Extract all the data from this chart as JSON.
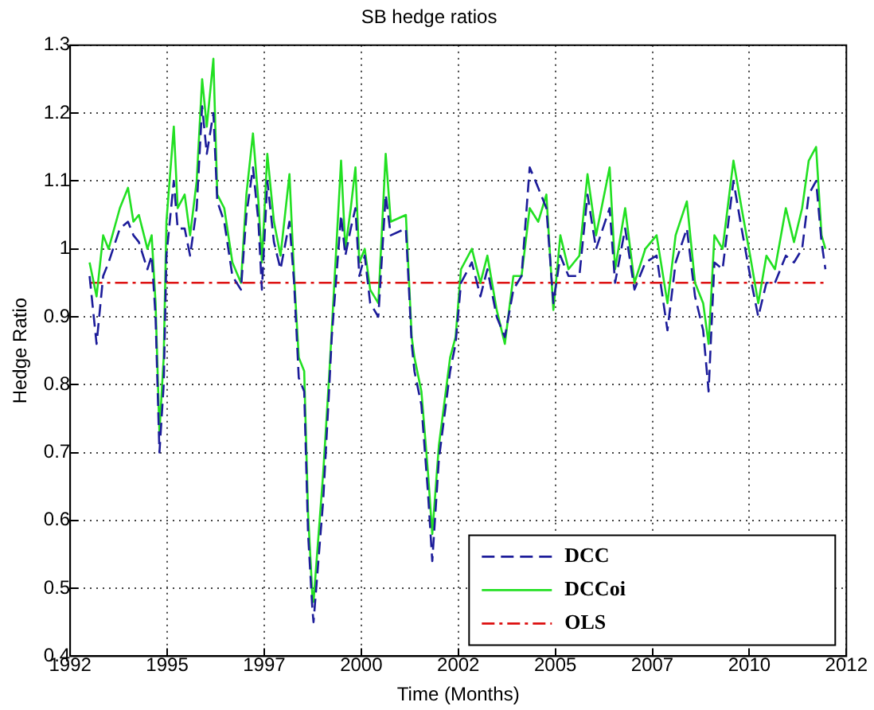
{
  "chart_data": {
    "type": "line",
    "title": "SB hedge ratios",
    "xlabel": "Time (Months)",
    "ylabel": "Hedge Ratio",
    "xlim": [
      1992,
      2012
    ],
    "xticks": [
      1992,
      {
        "value": 1994.5,
        "label": "1995"
      },
      1997,
      {
        "value": 1999.5,
        "label": "2000"
      },
      2002,
      {
        "value": 2004.5,
        "label": "2005"
      },
      2007,
      {
        "value": 2009.5,
        "label": "2010"
      },
      2012
    ],
    "ylim": [
      0.4,
      1.3
    ],
    "yticks": [
      0.4,
      0.5,
      0.6,
      0.7,
      0.8,
      0.9,
      1,
      1.1,
      1.2,
      1.3
    ],
    "grid": true,
    "legend": "bottom right",
    "marker": "none",
    "series": [
      {
        "name": "DCC",
        "color": "#1c1c9a",
        "line_style": "dashed",
        "x": [
          1992.5,
          1992.68,
          1992.85,
          1992.99,
          1993.28,
          1993.49,
          1993.63,
          1993.77,
          1993.99,
          1994.1,
          1994.2,
          1994.3,
          1994.41,
          1994.48,
          1994.67,
          1994.77,
          1994.95,
          1995.09,
          1995.26,
          1995.4,
          1995.52,
          1995.69,
          1995.79,
          1995.97,
          1996.18,
          1996.4,
          1996.54,
          1996.71,
          1996.85,
          1996.94,
          1997.08,
          1997.25,
          1997.42,
          1997.65,
          1997.77,
          1997.89,
          1998.03,
          1998.13,
          1998.24,
          1998.27,
          1998.52,
          1998.67,
          1998.74,
          1998.98,
          1999.09,
          1999.23,
          1999.35,
          1999.45,
          1999.59,
          1999.73,
          1999.94,
          2000.13,
          2000.26,
          2000.65,
          2000.8,
          2000.87,
          2001.05,
          2001.22,
          2001.33,
          2001.5,
          2001.79,
          2001.93,
          2002.07,
          2002.35,
          2002.57,
          2002.75,
          2002.99,
          2003.2,
          2003.42,
          2003.63,
          2003.84,
          2004.06,
          2004.27,
          2004.45,
          2004.63,
          2004.84,
          2005.12,
          2005.33,
          2005.55,
          2005.9,
          2006.04,
          2006.3,
          2006.54,
          2006.82,
          2007.11,
          2007.39,
          2007.6,
          2007.89,
          2008.1,
          2008.31,
          2008.45,
          2008.6,
          2008.81,
          2009.09,
          2009.3,
          2009.52,
          2009.73,
          2009.94,
          2010.16,
          2010.44,
          2010.65,
          2010.86,
          2011.03,
          2011.22,
          2011.36,
          2011.46
        ],
        "values": [
          0.96,
          0.86,
          0.96,
          0.98,
          1.03,
          1.04,
          1.02,
          1.01,
          0.97,
          0.99,
          0.9,
          0.7,
          0.8,
          0.99,
          1.1,
          1.03,
          1.03,
          0.99,
          1.06,
          1.21,
          1.14,
          1.2,
          1.07,
          1.04,
          0.96,
          0.94,
          1.05,
          1.12,
          1.04,
          0.94,
          1.1,
          1.01,
          0.97,
          1.04,
          0.95,
          0.81,
          0.79,
          0.58,
          0.47,
          0.45,
          0.63,
          0.79,
          0.87,
          1.05,
          0.99,
          1.03,
          1.06,
          0.96,
          0.99,
          0.92,
          0.9,
          1.08,
          1.02,
          1.03,
          0.86,
          0.82,
          0.77,
          0.64,
          0.54,
          0.69,
          0.82,
          0.86,
          0.95,
          0.98,
          0.93,
          0.97,
          0.9,
          0.87,
          0.94,
          0.96,
          1.12,
          1.09,
          1.06,
          0.92,
          0.99,
          0.96,
          0.96,
          1.08,
          1.0,
          1.06,
          0.95,
          1.03,
          0.94,
          0.98,
          0.99,
          0.88,
          0.98,
          1.03,
          0.93,
          0.88,
          0.79,
          0.98,
          0.97,
          1.1,
          1.03,
          0.96,
          0.9,
          0.95,
          0.95,
          0.99,
          0.98,
          1.0,
          1.08,
          1.1,
          1.01,
          0.97
        ]
      },
      {
        "name": "DCCoi",
        "color": "#22e022",
        "line_style": "solid",
        "x": [
          1992.5,
          1992.68,
          1992.85,
          1992.99,
          1993.28,
          1993.49,
          1993.63,
          1993.77,
          1993.99,
          1994.1,
          1994.2,
          1994.3,
          1994.41,
          1994.48,
          1994.67,
          1994.77,
          1994.95,
          1995.09,
          1995.26,
          1995.4,
          1995.52,
          1995.69,
          1995.79,
          1995.97,
          1996.18,
          1996.4,
          1996.54,
          1996.71,
          1996.85,
          1996.94,
          1997.08,
          1997.25,
          1997.42,
          1997.65,
          1997.77,
          1997.89,
          1998.03,
          1998.13,
          1998.24,
          1998.27,
          1998.52,
          1998.67,
          1998.74,
          1998.98,
          1999.09,
          1999.23,
          1999.35,
          1999.45,
          1999.59,
          1999.73,
          1999.94,
          2000.13,
          2000.26,
          2000.65,
          2000.8,
          2000.87,
          2001.05,
          2001.22,
          2001.33,
          2001.5,
          2001.79,
          2001.93,
          2002.07,
          2002.35,
          2002.57,
          2002.75,
          2002.99,
          2003.2,
          2003.42,
          2003.63,
          2003.84,
          2004.06,
          2004.27,
          2004.45,
          2004.63,
          2004.84,
          2005.12,
          2005.33,
          2005.55,
          2005.9,
          2006.04,
          2006.3,
          2006.54,
          2006.82,
          2007.11,
          2007.39,
          2007.6,
          2007.89,
          2008.1,
          2008.31,
          2008.45,
          2008.6,
          2008.81,
          2009.09,
          2009.3,
          2009.52,
          2009.73,
          2009.94,
          2010.16,
          2010.44,
          2010.65,
          2010.86,
          2011.03,
          2011.22,
          2011.36,
          2011.46
        ],
        "values": [
          0.98,
          0.93,
          1.02,
          1.0,
          1.06,
          1.09,
          1.04,
          1.05,
          1.0,
          1.02,
          0.92,
          0.73,
          0.84,
          1.04,
          1.18,
          1.06,
          1.08,
          1.02,
          1.1,
          1.25,
          1.18,
          1.28,
          1.08,
          1.06,
          0.98,
          0.95,
          1.08,
          1.17,
          1.07,
          0.98,
          1.14,
          1.04,
          0.99,
          1.11,
          0.96,
          0.84,
          0.82,
          0.61,
          0.49,
          0.48,
          0.67,
          0.81,
          0.88,
          1.13,
          1.0,
          1.06,
          1.12,
          0.98,
          1.0,
          0.94,
          0.92,
          1.14,
          1.04,
          1.05,
          0.87,
          0.84,
          0.79,
          0.67,
          0.58,
          0.71,
          0.84,
          0.87,
          0.97,
          1.0,
          0.95,
          0.99,
          0.91,
          0.86,
          0.96,
          0.96,
          1.06,
          1.04,
          1.08,
          0.91,
          1.02,
          0.97,
          0.99,
          1.11,
          1.02,
          1.12,
          0.97,
          1.06,
          0.95,
          1.0,
          1.02,
          0.92,
          1.02,
          1.07,
          0.95,
          0.92,
          0.86,
          1.02,
          1.0,
          1.13,
          1.06,
          0.99,
          0.92,
          0.99,
          0.97,
          1.06,
          1.01,
          1.06,
          1.13,
          1.15,
          1.02,
          1.0
        ]
      },
      {
        "name": "OLS",
        "color": "#dd1111",
        "line_style": "dashdot",
        "x": [
          1992.5,
          2011.46
        ],
        "values": [
          0.95,
          0.95
        ]
      }
    ]
  }
}
